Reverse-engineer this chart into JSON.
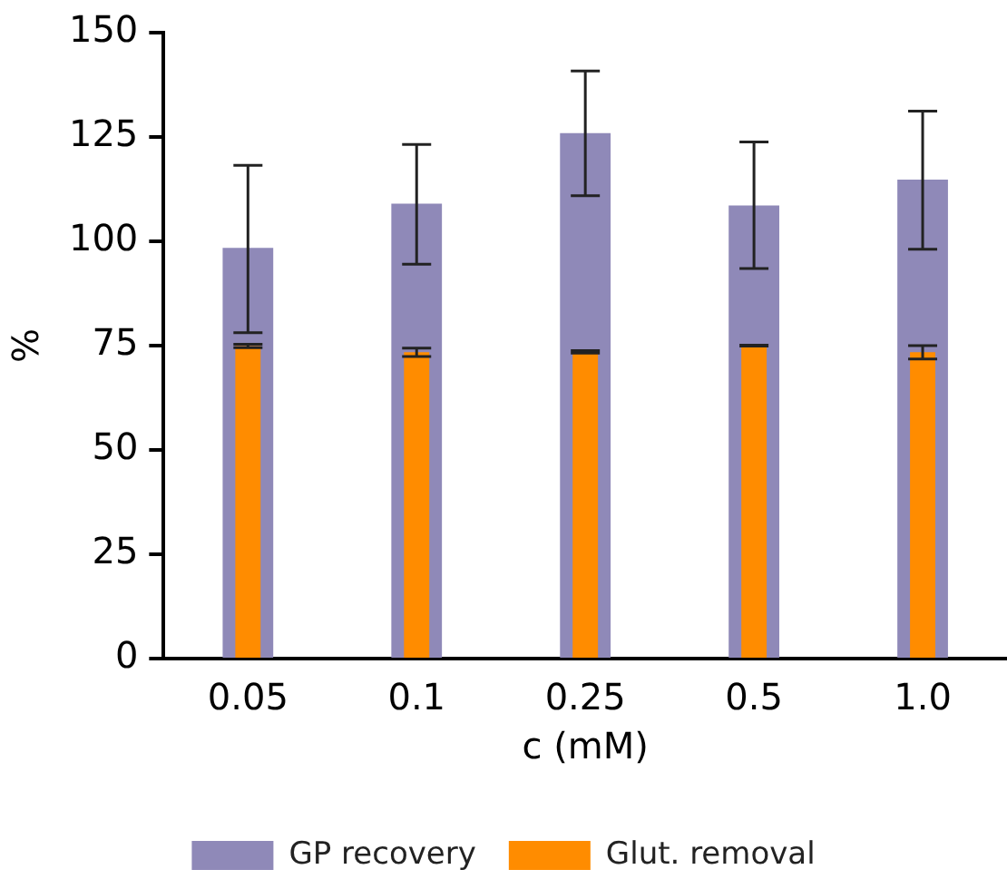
{
  "chart_data": {
    "type": "bar",
    "xlabel": "c (mM)",
    "ylabel": "%",
    "categories": [
      "0.05",
      "0.1",
      "0.25",
      "0.5",
      "1.0"
    ],
    "series": [
      {
        "name": "GP recovery",
        "color": "#8f89b8",
        "values": [
          98.4,
          109.0,
          125.9,
          108.6,
          114.8
        ],
        "errors": [
          [
            78.1,
            118.2
          ],
          [
            94.5,
            123.2
          ],
          [
            110.9,
            140.8
          ],
          [
            93.5,
            123.8
          ],
          [
            98.1,
            131.2
          ]
        ]
      },
      {
        "name": "Glut. removal",
        "color": "#ff8c00",
        "values": [
          74.9,
          73.4,
          73.5,
          75.0,
          73.4
        ],
        "errors": [
          0.4,
          1,
          0.3,
          0.1,
          1.6
        ]
      }
    ],
    "ylim": [
      0,
      150
    ],
    "yticks": [
      0,
      25,
      50,
      75,
      100,
      125,
      150
    ],
    "grid": false,
    "legend": "bottom"
  }
}
